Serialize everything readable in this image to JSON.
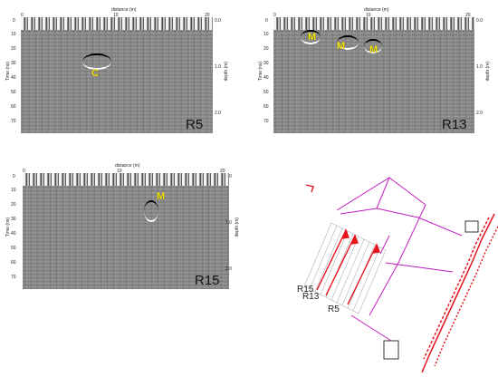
{
  "common": {
    "x_axis_label": "distance (m)",
    "y_axis_left_label": "Time (ns)",
    "y_axis_right_label": "depth (m)",
    "x_ticks": [
      "0",
      "10",
      "20"
    ],
    "time_ticks": [
      "0",
      "10",
      "20",
      "30",
      "40",
      "50",
      "60",
      "70"
    ],
    "depth_ticks": [
      "0.0",
      "1.0",
      "2.0"
    ]
  },
  "panels": {
    "r5": {
      "name": "R5",
      "annotations": [
        "C"
      ]
    },
    "r13": {
      "name": "R13",
      "annotations": [
        "M",
        "M",
        "M"
      ]
    },
    "r15": {
      "name": "R15",
      "annotations": [
        "M"
      ]
    }
  },
  "site_plan": {
    "line_labels": [
      "R15",
      "R13",
      "R5"
    ],
    "colors": {
      "survey_lines": "#e8141e",
      "boundaries": "#c21fbf",
      "buildings": "#e8141e"
    }
  }
}
